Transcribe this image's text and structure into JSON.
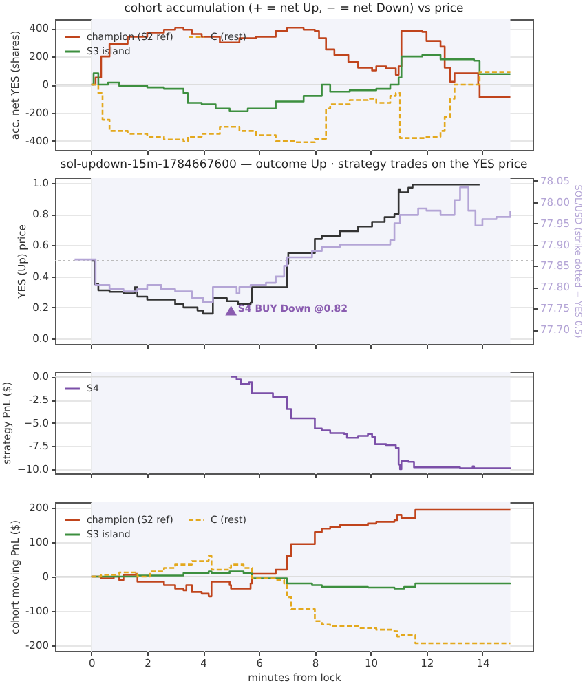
{
  "chart_data": [
    {
      "type": "step",
      "title": "cohort accumulation (+ = net Up, − = net Down) vs price",
      "ylabel": "acc. net YES (shares)",
      "xlim": [
        -1.3,
        15.8
      ],
      "xticks": [
        0,
        2,
        4,
        6,
        8,
        10,
        12,
        14
      ],
      "ylim": [
        -465,
        465
      ],
      "yticks": [
        -400,
        -200,
        0,
        200,
        400
      ],
      "grid": true,
      "legend": "top left",
      "tick_labels": "y",
      "bands": [
        {
          "axis": "x",
          "from": 0,
          "to": 15,
          "color": "#f3f4fa"
        }
      ],
      "ref_lines": [
        {
          "axis": "y",
          "value": 0,
          "color": "#dddddd"
        }
      ],
      "series": [
        {
          "name": "champion (S2 ref)",
          "color": "#c0441c",
          "x": [
            0,
            0.15,
            0.35,
            0.65,
            1.3,
            2,
            2.6,
            3,
            3.3,
            3.6,
            3.95,
            4.6,
            5.3,
            5.9,
            6.6,
            7,
            7.6,
            8,
            8.15,
            8.4,
            8.7,
            9.2,
            9.55,
            10.05,
            10.2,
            10.55,
            10.9,
            11,
            11.1,
            11.85,
            12,
            12.5,
            12.65,
            12.85,
            13,
            13.85,
            13.9,
            15
          ],
          "values": [
            0,
            50,
            200,
            290,
            340,
            370,
            390,
            405,
            390,
            360,
            340,
            300,
            330,
            340,
            380,
            405,
            390,
            380,
            330,
            250,
            210,
            160,
            120,
            100,
            130,
            115,
            70,
            130,
            380,
            375,
            310,
            270,
            120,
            20,
            80,
            0,
            -90,
            -90
          ]
        },
        {
          "name": "S3 island",
          "color": "#3d8f3f",
          "x": [
            0,
            0.08,
            0.25,
            0.6,
            1,
            2,
            2.6,
            3.3,
            3.45,
            3.95,
            4.45,
            4.95,
            5.6,
            6.6,
            7.6,
            8.25,
            8.55,
            9.25,
            10.2,
            10.7,
            11,
            11.1,
            11.85,
            12.5,
            13.2,
            13.7,
            13.9,
            15
          ],
          "values": [
            0,
            80,
            0,
            15,
            -10,
            -20,
            -30,
            -60,
            -130,
            -140,
            -170,
            -190,
            -170,
            -120,
            -80,
            0,
            -50,
            -40,
            -30,
            0,
            50,
            200,
            210,
            180,
            180,
            170,
            75,
            75
          ]
        },
        {
          "name": "C (rest)",
          "color": "#e3a81d",
          "line_style": "dashed",
          "x": [
            0,
            0.25,
            0.4,
            0.65,
            1.3,
            2,
            2.6,
            3.3,
            3.45,
            3.95,
            4.6,
            5.3,
            5.9,
            6.6,
            7.25,
            8,
            8.4,
            8.55,
            9.25,
            9.9,
            10.2,
            10.7,
            10.9,
            11.05,
            12,
            12.5,
            12.65,
            12.85,
            13,
            13.85,
            13.9,
            15
          ],
          "values": [
            0,
            -60,
            -250,
            -330,
            -350,
            -370,
            -390,
            -405,
            -370,
            -350,
            -300,
            -330,
            -360,
            -400,
            -410,
            -385,
            -170,
            -140,
            -110,
            -100,
            -130,
            -80,
            -60,
            -380,
            -370,
            -330,
            -230,
            -100,
            0,
            0,
            90,
            90
          ]
        }
      ]
    },
    {
      "type": "step",
      "title": "sol-updown-15m-1784667600 — outcome Up · strategy trades on the YES price",
      "ylabel": "YES (Up) price",
      "y2label": "SOL/USD (strike dotted = YES 0.5)",
      "xlim": [
        -1.3,
        15.8
      ],
      "xticks": [
        0,
        2,
        4,
        6,
        8,
        10,
        12,
        14
      ],
      "ylim": [
        -0.035,
        1.035
      ],
      "yticks": [
        {
          "value": 0,
          "label": "0.0"
        },
        0.2,
        0.4,
        0.6,
        0.8,
        {
          "value": 1,
          "label": "1.0"
        }
      ],
      "y2lim": [
        77.666,
        78.058
      ],
      "y2ticks": [
        {
          "value": 77.7,
          "label": "77.70"
        },
        77.75,
        {
          "value": 77.8,
          "label": "77.80"
        },
        77.85,
        {
          "value": 77.9,
          "label": "77.90"
        },
        77.95,
        {
          "value": 78,
          "label": "78.00"
        },
        78.05
      ],
      "grid": true,
      "tick_labels": "y",
      "bands": [
        {
          "axis": "x",
          "from": 0,
          "to": 15,
          "color": "#f3f4fa"
        }
      ],
      "ref_lines": [
        {
          "axis": "y",
          "value": 0.5,
          "color": "#bbbbbb",
          "line_style": "dotted"
        }
      ],
      "annotations": [
        {
          "text": "S4 BUY Down @0.82",
          "x": 5,
          "y": 0.18
        }
      ],
      "series": [
        {
          "color": "#b4a5d6",
          "axis": "y2",
          "x": [
            -0.6,
            0,
            0.15,
            0.65,
            1.15,
            1.65,
            2,
            2.5,
            3,
            3.6,
            4,
            4.3,
            4.35,
            4.85,
            5.2,
            5.3,
            5.7,
            6.25,
            6.6,
            6.9,
            7,
            7.9,
            8.25,
            8.9,
            9.9,
            10.7,
            10.85,
            11.05,
            11.7,
            12,
            12.5,
            13,
            13.2,
            13.5,
            13.75,
            14,
            14.5,
            15
          ],
          "values": [
            77.865,
            77.865,
            77.805,
            77.795,
            77.79,
            77.795,
            77.805,
            77.795,
            77.79,
            77.775,
            77.765,
            77.765,
            77.8,
            77.8,
            77.785,
            77.8,
            77.805,
            77.81,
            77.825,
            77.85,
            77.87,
            77.885,
            77.895,
            77.9,
            77.9,
            77.91,
            77.95,
            77.97,
            77.985,
            77.98,
            77.97,
            78.005,
            78.035,
            77.98,
            77.945,
            77.96,
            77.965,
            77.98
          ]
        },
        {
          "color": "#333333",
          "x": [
            0,
            0.1,
            0.13,
            0.25,
            0.65,
            1.15,
            1.55,
            1.65,
            2,
            2.5,
            3,
            3.3,
            3.8,
            4,
            4.3,
            4.35,
            4.85,
            5.25,
            5.7,
            5.75,
            6.6,
            7,
            7.05,
            7.9,
            8,
            8.25,
            8.9,
            9.55,
            10.05,
            10.5,
            10.85,
            11,
            11.05,
            11.35,
            11.5,
            13.9
          ],
          "values": [
            0.5,
            0.5,
            0.35,
            0.31,
            0.3,
            0.29,
            0.33,
            0.27,
            0.25,
            0.25,
            0.22,
            0.2,
            0.18,
            0.16,
            0.16,
            0.26,
            0.24,
            0.22,
            0.23,
            0.33,
            0.33,
            0.48,
            0.55,
            0.55,
            0.64,
            0.66,
            0.69,
            0.72,
            0.75,
            0.78,
            0.8,
            0.96,
            0.94,
            0.97,
            0.99,
            0.99
          ]
        },
        {
          "type": "scatter",
          "color": "#8a5cb0",
          "marker": "triangle",
          "x": [
            5
          ],
          "values": [
            0.18
          ]
        }
      ]
    },
    {
      "type": "step",
      "ylabel": "strategy PnL ($)",
      "xlim": [
        -1.3,
        15.8
      ],
      "xticks": [
        0,
        2,
        4,
        6,
        8,
        10,
        12,
        14
      ],
      "ylim": [
        -10.45,
        0.55
      ],
      "yticks": [
        {
          "value": -10,
          "label": "−10.0"
        },
        -7.5,
        {
          "value": -5,
          "label": "−5.0"
        },
        -2.5,
        {
          "value": 0,
          "label": "0.0"
        }
      ],
      "grid": true,
      "legend": "top left",
      "tick_labels": "y",
      "bands": [
        {
          "axis": "x",
          "from": 0,
          "to": 15,
          "color": "#f3f4fa"
        }
      ],
      "ref_lines": [
        {
          "axis": "y",
          "value": 0,
          "color": "#dddddd"
        }
      ],
      "series": [
        {
          "name": "S4",
          "color": "#7b4fa8",
          "x": [
            5,
            5.2,
            5.35,
            5.65,
            5.75,
            6.45,
            6.5,
            6.95,
            7,
            7.15,
            7.9,
            8,
            8.25,
            8.55,
            9.05,
            9.15,
            9.55,
            9.9,
            10.05,
            10.15,
            10.55,
            10.9,
            11,
            11.05,
            11.1,
            11.35,
            11.55,
            13.2,
            13.65,
            13.7,
            15
          ],
          "values": [
            0,
            -0.3,
            -0.8,
            -0.6,
            -1.8,
            -1.8,
            -2.2,
            -2.2,
            -3.5,
            -4.5,
            -4.5,
            -5.6,
            -5.8,
            -6.1,
            -6.2,
            -6.6,
            -6.4,
            -6.2,
            -6.5,
            -7.3,
            -7.4,
            -7.7,
            -9.5,
            -10,
            -9.1,
            -9.2,
            -9.8,
            -9.9,
            -9.7,
            -9.9,
            -10
          ]
        }
      ]
    },
    {
      "type": "step",
      "xlabel": "minutes from lock",
      "ylabel": "cohort moving PnL ($)",
      "xlim": [
        -1.3,
        15.8
      ],
      "xticks": [
        0,
        2,
        4,
        6,
        8,
        10,
        12,
        14
      ],
      "ylim": [
        -217,
        217
      ],
      "yticks": [
        -200,
        -100,
        0,
        100,
        200
      ],
      "grid": true,
      "legend": "top left",
      "bands": [
        {
          "axis": "x",
          "from": 0,
          "to": 15,
          "color": "#f3f4fa"
        }
      ],
      "ref_lines": [
        {
          "axis": "y",
          "value": 0,
          "color": "#dddddd"
        }
      ],
      "series": [
        {
          "name": "champion (S2 ref)",
          "color": "#c0441c",
          "x": [
            0,
            0.35,
            0.8,
            1,
            1.15,
            1.6,
            1.65,
            2.1,
            2.6,
            3,
            3.3,
            3.4,
            3.6,
            3.95,
            4.2,
            4.3,
            4.95,
            5,
            5.45,
            5.7,
            5.75,
            6.55,
            6.6,
            6.9,
            7,
            7.15,
            7.9,
            8,
            8.25,
            8.55,
            8.9,
            9.9,
            10.2,
            10.85,
            10.95,
            11.1,
            11.6,
            15
          ],
          "values": [
            0,
            -5,
            0,
            -10,
            5,
            8,
            -15,
            -15,
            -25,
            -35,
            -40,
            -25,
            -45,
            -50,
            -58,
            -15,
            -25,
            -35,
            -35,
            -20,
            8,
            8,
            20,
            20,
            60,
            95,
            95,
            130,
            140,
            145,
            150,
            155,
            160,
            165,
            180,
            170,
            195,
            195
          ]
        },
        {
          "name": "S3 island",
          "color": "#3d8f3f",
          "x": [
            0,
            1.65,
            3.3,
            4.2,
            4.3,
            4.95,
            5.45,
            5.75,
            6.9,
            7,
            7.9,
            8.25,
            9.9,
            10.85,
            11.2,
            11.6,
            13.2,
            15
          ],
          "values": [
            0,
            3,
            10,
            15,
            10,
            15,
            10,
            -5,
            -5,
            -20,
            -25,
            -30,
            -32,
            -35,
            -30,
            -20,
            -20,
            -18
          ]
        },
        {
          "name": "C (rest)",
          "color": "#e3a81d",
          "line_style": "dashed",
          "x": [
            0,
            0.35,
            1,
            1.65,
            2.1,
            2.6,
            3,
            3.6,
            4.2,
            4.3,
            4.95,
            5,
            5.45,
            5.75,
            6.6,
            6.9,
            7,
            7.15,
            7.9,
            8,
            8.25,
            8.55,
            9.55,
            10.2,
            10.85,
            10.95,
            11.1,
            11.6,
            15
          ],
          "values": [
            0,
            5,
            12,
            0,
            15,
            25,
            35,
            45,
            60,
            20,
            25,
            35,
            25,
            -5,
            -10,
            -20,
            -60,
            -95,
            -95,
            -130,
            -140,
            -145,
            -150,
            -155,
            -160,
            -175,
            -170,
            -195,
            -195
          ]
        }
      ]
    }
  ]
}
